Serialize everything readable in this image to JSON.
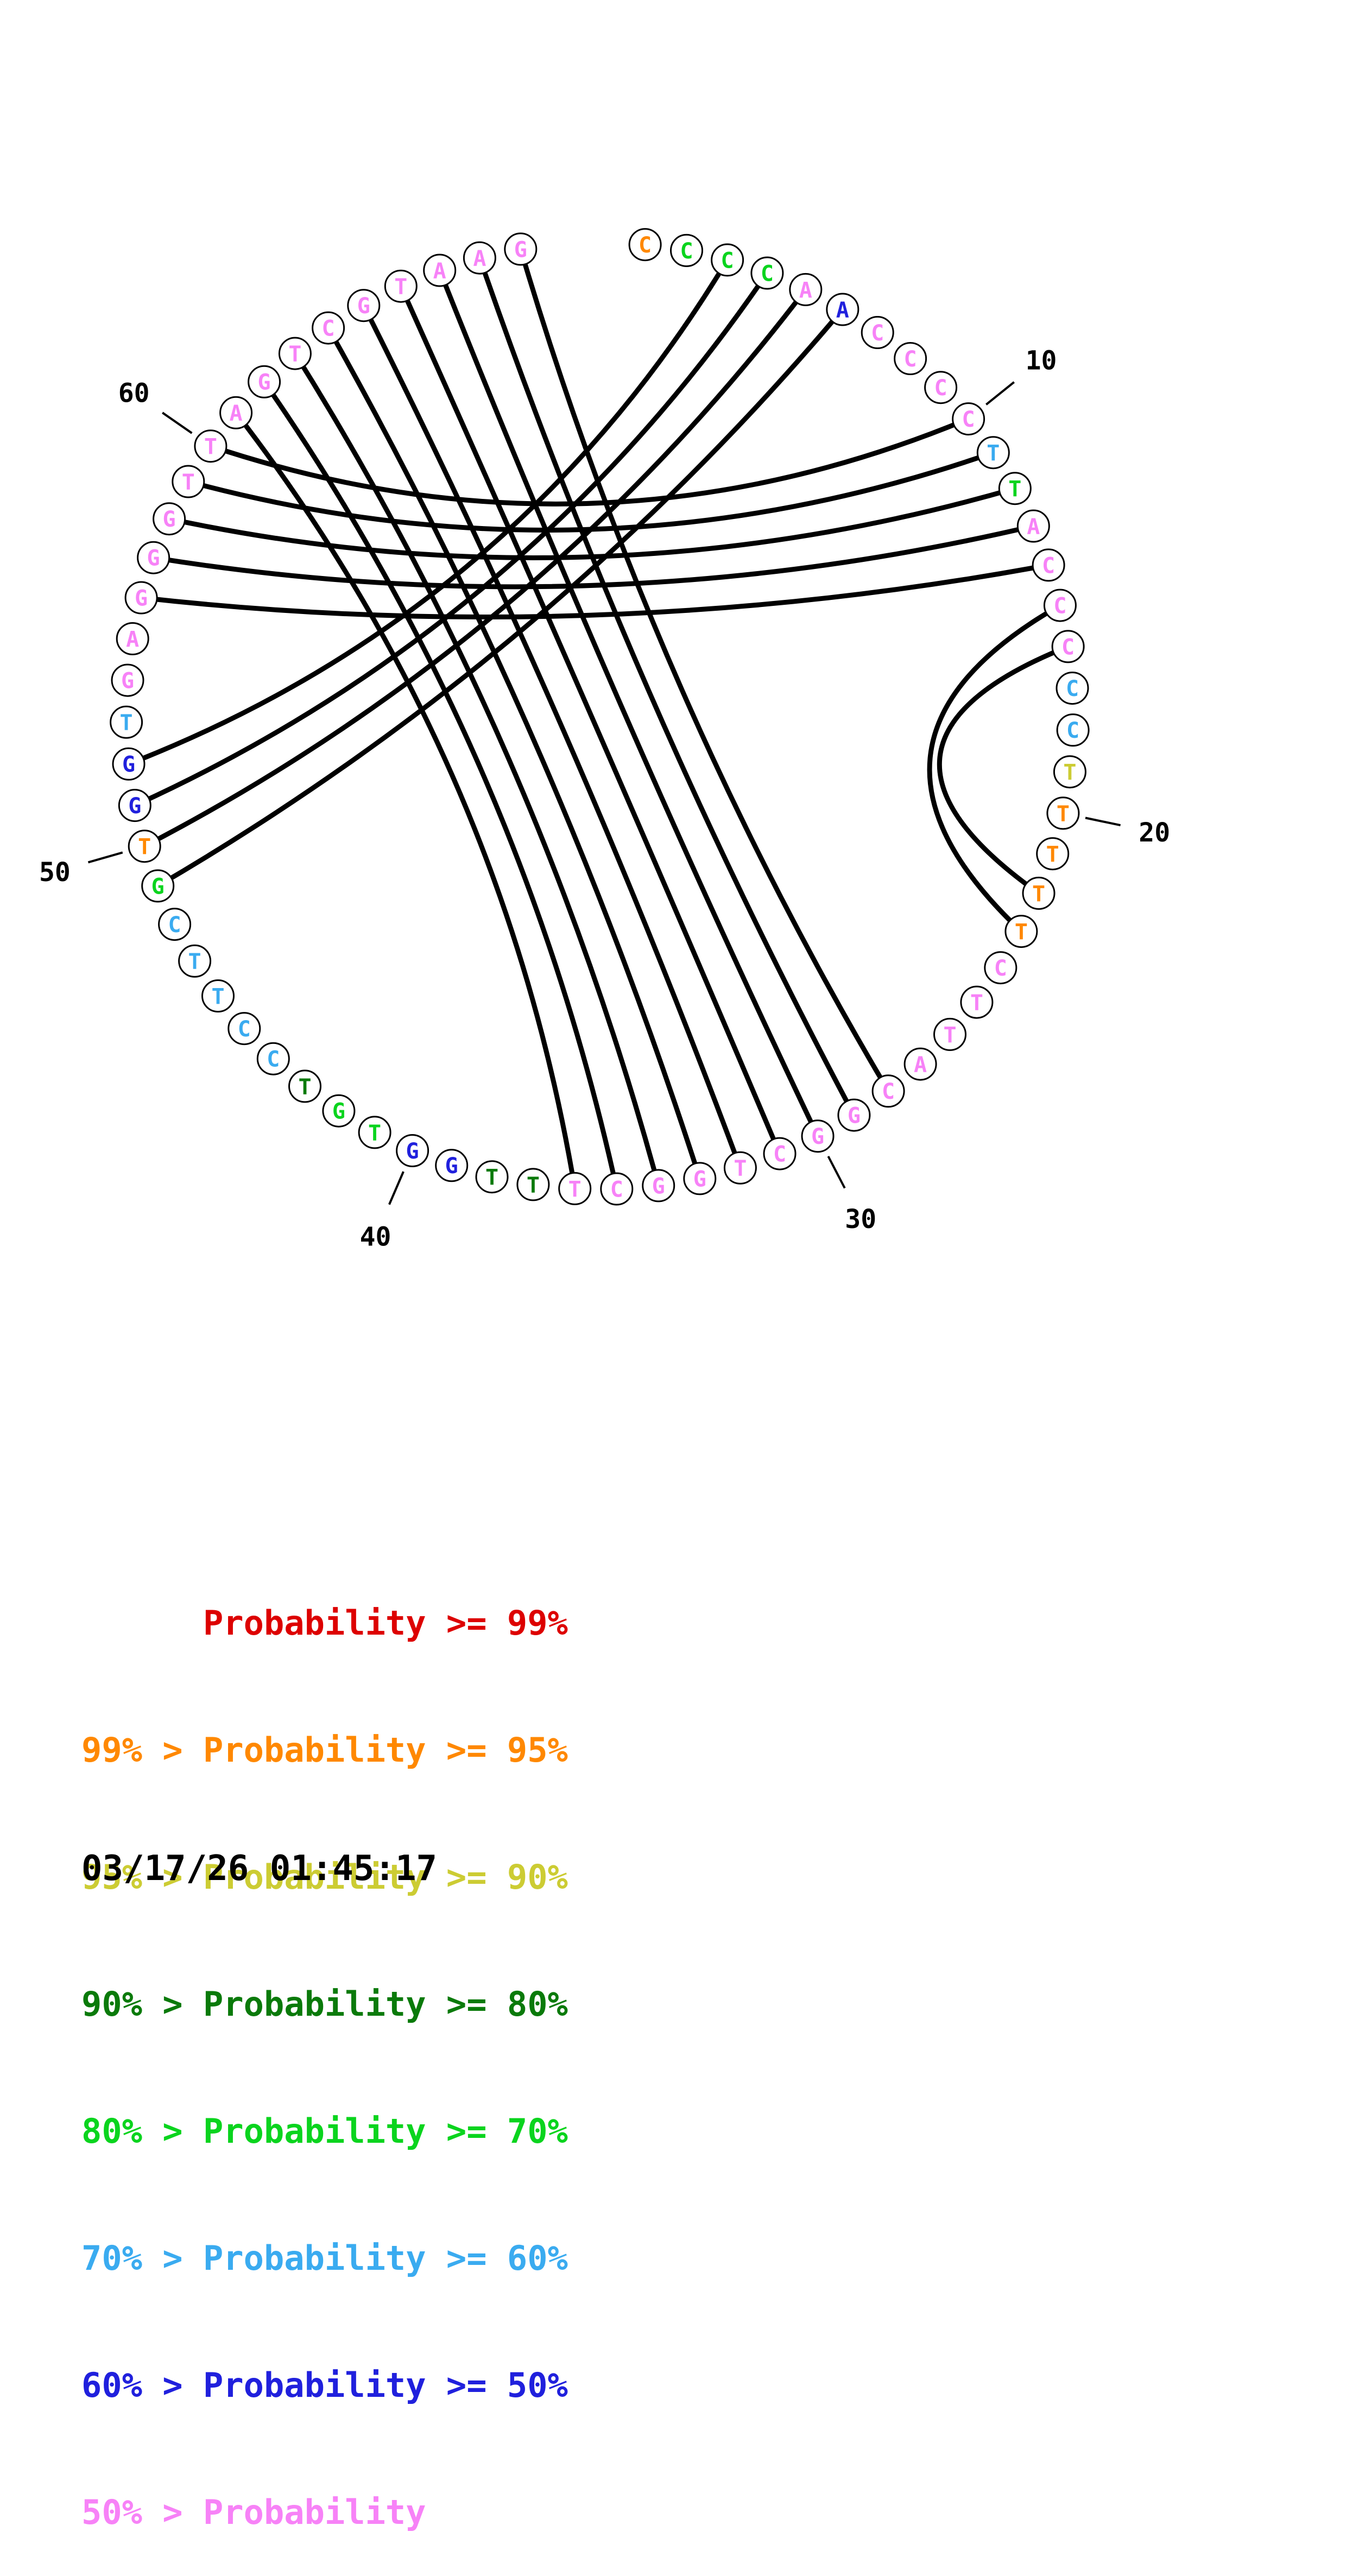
{
  "figure": {
    "description": "Circular nucleic-acid base-pair probability plot (circle plot with pairing chords)",
    "sequence": [
      {
        "base": "C",
        "color": "orange"
      },
      {
        "base": "C",
        "color": "green"
      },
      {
        "base": "C",
        "color": "green"
      },
      {
        "base": "C",
        "color": "green"
      },
      {
        "base": "A",
        "color": "pink"
      },
      {
        "base": "A",
        "color": "blue"
      },
      {
        "base": "C",
        "color": "pink"
      },
      {
        "base": "C",
        "color": "pink"
      },
      {
        "base": "C",
        "color": "pink"
      },
      {
        "base": "C",
        "color": "pink"
      },
      {
        "base": "T",
        "color": "ltblue"
      },
      {
        "base": "T",
        "color": "green"
      },
      {
        "base": "A",
        "color": "pink"
      },
      {
        "base": "C",
        "color": "pink"
      },
      {
        "base": "C",
        "color": "pink"
      },
      {
        "base": "C",
        "color": "pink"
      },
      {
        "base": "C",
        "color": "ltblue"
      },
      {
        "base": "C",
        "color": "ltblue"
      },
      {
        "base": "T",
        "color": "yellow"
      },
      {
        "base": "T",
        "color": "orange"
      },
      {
        "base": "T",
        "color": "orange"
      },
      {
        "base": "T",
        "color": "orange"
      },
      {
        "base": "T",
        "color": "orange"
      },
      {
        "base": "C",
        "color": "pink"
      },
      {
        "base": "T",
        "color": "pink"
      },
      {
        "base": "T",
        "color": "pink"
      },
      {
        "base": "A",
        "color": "pink"
      },
      {
        "base": "C",
        "color": "pink"
      },
      {
        "base": "G",
        "color": "pink"
      },
      {
        "base": "G",
        "color": "pink"
      },
      {
        "base": "C",
        "color": "pink"
      },
      {
        "base": "T",
        "color": "pink"
      },
      {
        "base": "G",
        "color": "pink"
      },
      {
        "base": "G",
        "color": "pink"
      },
      {
        "base": "C",
        "color": "pink"
      },
      {
        "base": "T",
        "color": "pink"
      },
      {
        "base": "T",
        "color": "dkgreen"
      },
      {
        "base": "T",
        "color": "dkgreen"
      },
      {
        "base": "G",
        "color": "blue"
      },
      {
        "base": "G",
        "color": "blue"
      },
      {
        "base": "T",
        "color": "green"
      },
      {
        "base": "G",
        "color": "green"
      },
      {
        "base": "T",
        "color": "dkgreen"
      },
      {
        "base": "C",
        "color": "ltblue"
      },
      {
        "base": "C",
        "color": "ltblue"
      },
      {
        "base": "T",
        "color": "ltblue"
      },
      {
        "base": "T",
        "color": "ltblue"
      },
      {
        "base": "C",
        "color": "ltblue"
      },
      {
        "base": "G",
        "color": "green"
      },
      {
        "base": "T",
        "color": "orange"
      },
      {
        "base": "G",
        "color": "blue"
      },
      {
        "base": "G",
        "color": "blue"
      },
      {
        "base": "T",
        "color": "ltblue"
      },
      {
        "base": "G",
        "color": "pink"
      },
      {
        "base": "A",
        "color": "pink"
      },
      {
        "base": "G",
        "color": "pink"
      },
      {
        "base": "G",
        "color": "pink"
      },
      {
        "base": "G",
        "color": "pink"
      },
      {
        "base": "T",
        "color": "pink"
      },
      {
        "base": "T",
        "color": "pink"
      },
      {
        "base": "A",
        "color": "pink"
      },
      {
        "base": "G",
        "color": "pink"
      },
      {
        "base": "T",
        "color": "pink"
      },
      {
        "base": "C",
        "color": "pink"
      },
      {
        "base": "G",
        "color": "pink"
      },
      {
        "base": "T",
        "color": "pink"
      },
      {
        "base": "A",
        "color": "pink"
      },
      {
        "base": "A",
        "color": "pink"
      },
      {
        "base": "G",
        "color": "pink"
      }
    ],
    "pairs": [
      [
        3,
        52
      ],
      [
        4,
        51
      ],
      [
        5,
        50
      ],
      [
        6,
        49
      ],
      [
        10,
        60
      ],
      [
        11,
        59
      ],
      [
        12,
        58
      ],
      [
        13,
        57
      ],
      [
        14,
        56
      ],
      [
        15,
        23
      ],
      [
        16,
        22
      ],
      [
        61,
        36
      ],
      [
        62,
        35
      ],
      [
        63,
        34
      ],
      [
        64,
        33
      ],
      [
        65,
        32
      ],
      [
        66,
        31
      ],
      [
        67,
        30
      ],
      [
        68,
        29
      ],
      [
        69,
        28
      ]
    ],
    "position_labels": [
      "10",
      "20",
      "30",
      "40",
      "50",
      "60"
    ]
  },
  "legend": {
    "items": [
      {
        "text": "      Probability >= 99%",
        "color_key": "red"
      },
      {
        "text": "99% > Probability >= 95%",
        "color_key": "orange"
      },
      {
        "text": "95% > Probability >= 90%",
        "color_key": "yellow"
      },
      {
        "text": "90% > Probability >= 80%",
        "color_key": "dkgreen"
      },
      {
        "text": "80% > Probability >= 70%",
        "color_key": "green"
      },
      {
        "text": "70% > Probability >= 60%",
        "color_key": "ltblue"
      },
      {
        "text": "60% > Probability >= 50%",
        "color_key": "blue"
      },
      {
        "text": "50% > Probability",
        "color_key": "pink"
      }
    ]
  },
  "timestamp": "03/17/26 01:45:17",
  "colors": {
    "red": "#dd0000",
    "orange": "#ff8800",
    "yellow": "#cccc33",
    "dkgreen": "#0a7a0a",
    "green": "#0ad41e",
    "ltblue": "#3aabf0",
    "blue": "#2020dd",
    "pink": "#f782f7",
    "black": "#000000"
  }
}
